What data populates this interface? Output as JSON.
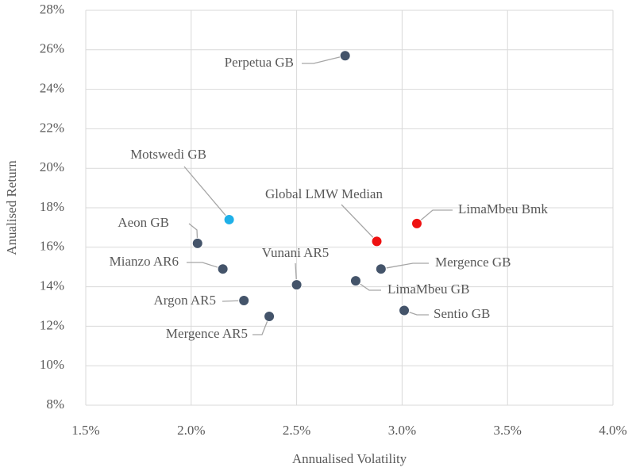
{
  "chart_data": {
    "type": "scatter",
    "xlabel": "Annualised Volatility",
    "ylabel": "Anualised Return",
    "labels": [
      "Perpetua GB",
      "Motswedi GB",
      "Aeon GB",
      "Mianzo AR6",
      "Argon AR5",
      "Mergence AR5",
      "Vunani AR5",
      "Global LMW Median",
      "LimaMbeu Bmk",
      "Mergence GB",
      "LimaMbeu GB",
      "Sentio GB"
    ],
    "x": [
      2.73,
      2.18,
      2.03,
      2.15,
      2.25,
      2.37,
      2.5,
      2.88,
      3.07,
      2.9,
      2.78,
      3.01
    ],
    "y": [
      25.7,
      17.4,
      16.2,
      14.9,
      13.3,
      12.5,
      14.1,
      16.3,
      17.2,
      14.9,
      14.3,
      12.8
    ],
    "colors": [
      "#44546a",
      "#1fb0e8",
      "#44546a",
      "#44546a",
      "#44546a",
      "#44546a",
      "#44546a",
      "#ee1111",
      "#ee1111",
      "#44546a",
      "#44546a",
      "#44546a"
    ],
    "xlim": [
      1.5,
      4.0
    ],
    "xticks": [
      {
        "value": 1.5,
        "label": "1.5%"
      },
      {
        "value": 2.0,
        "label": "2.0%"
      },
      {
        "value": 2.5,
        "label": "2.5%"
      },
      {
        "value": 3.0,
        "label": "3.0%"
      },
      {
        "value": 3.5,
        "label": "3.5%"
      },
      {
        "value": 4.0,
        "label": "4.0%"
      }
    ],
    "ylim": [
      8,
      28
    ],
    "yticks": [
      {
        "value": 8,
        "label": "8%"
      },
      {
        "value": 10,
        "label": "10%"
      },
      {
        "value": 12,
        "label": "12%"
      },
      {
        "value": 14,
        "label": "14%"
      },
      {
        "value": 16,
        "label": "16%"
      },
      {
        "value": 18,
        "label": "18%"
      },
      {
        "value": 20,
        "label": "20%"
      },
      {
        "value": 22,
        "label": "22%"
      },
      {
        "value": 24,
        "label": "24%"
      },
      {
        "value": 26,
        "label": "26%"
      },
      {
        "value": 28,
        "label": "28%"
      }
    ],
    "grid": true
  }
}
